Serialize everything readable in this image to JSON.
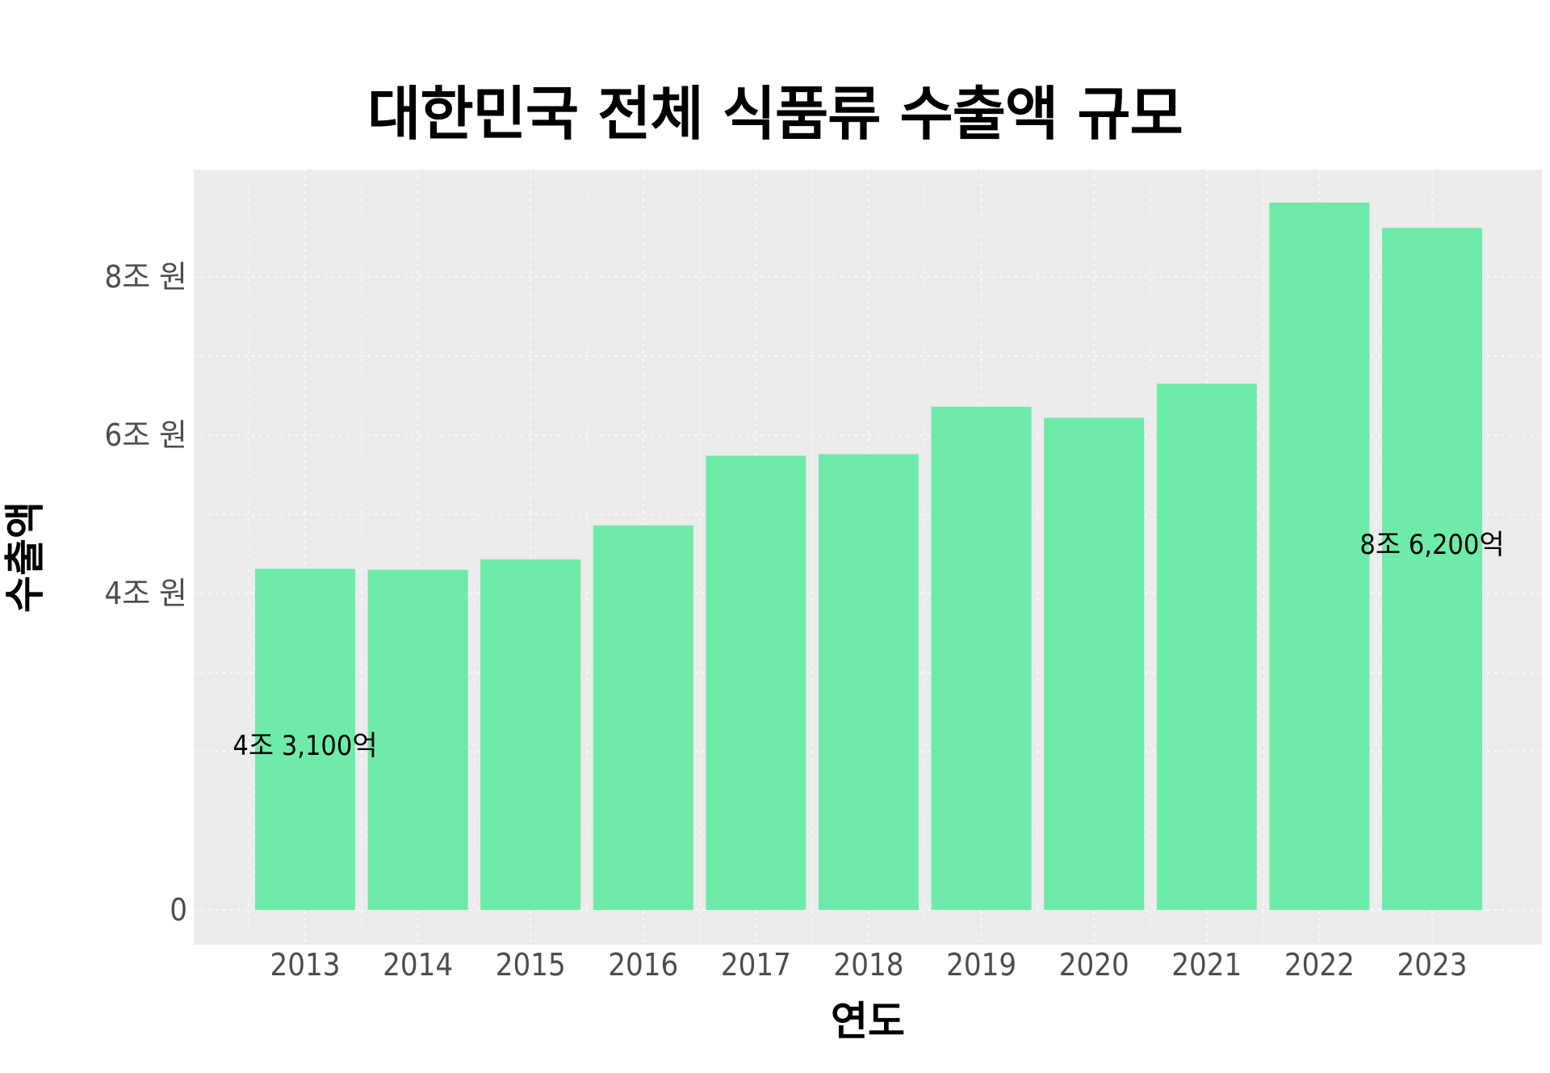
{
  "chart_data": {
    "type": "bar",
    "title": "대한민국 전체 식품류 수출액 규모",
    "xlabel": "연도",
    "ylabel": "수출액",
    "categories": [
      "2013",
      "2014",
      "2015",
      "2016",
      "2017",
      "2018",
      "2019",
      "2020",
      "2021",
      "2022",
      "2023"
    ],
    "values": [
      4.31,
      4.3,
      4.43,
      4.86,
      5.74,
      5.76,
      6.36,
      6.22,
      6.65,
      8.94,
      8.62
    ],
    "value_unit": "조 원",
    "ylim": [
      0,
      9.2
    ],
    "y_ticks": [
      {
        "value": 0,
        "label": "0"
      },
      {
        "value": 4,
        "label": "4조 원"
      },
      {
        "value": 6,
        "label": "6조 원"
      },
      {
        "value": 8,
        "label": "8조 원"
      }
    ],
    "annotations": [
      {
        "category": "2013",
        "value": 2.08,
        "text": "4조 3,100억"
      },
      {
        "category": "2023",
        "value": 4.62,
        "text": "8조 6,200억"
      }
    ],
    "bar_color": "#6eeaa9",
    "panel_color": "#ececec",
    "grid": true,
    "legend": "none"
  }
}
